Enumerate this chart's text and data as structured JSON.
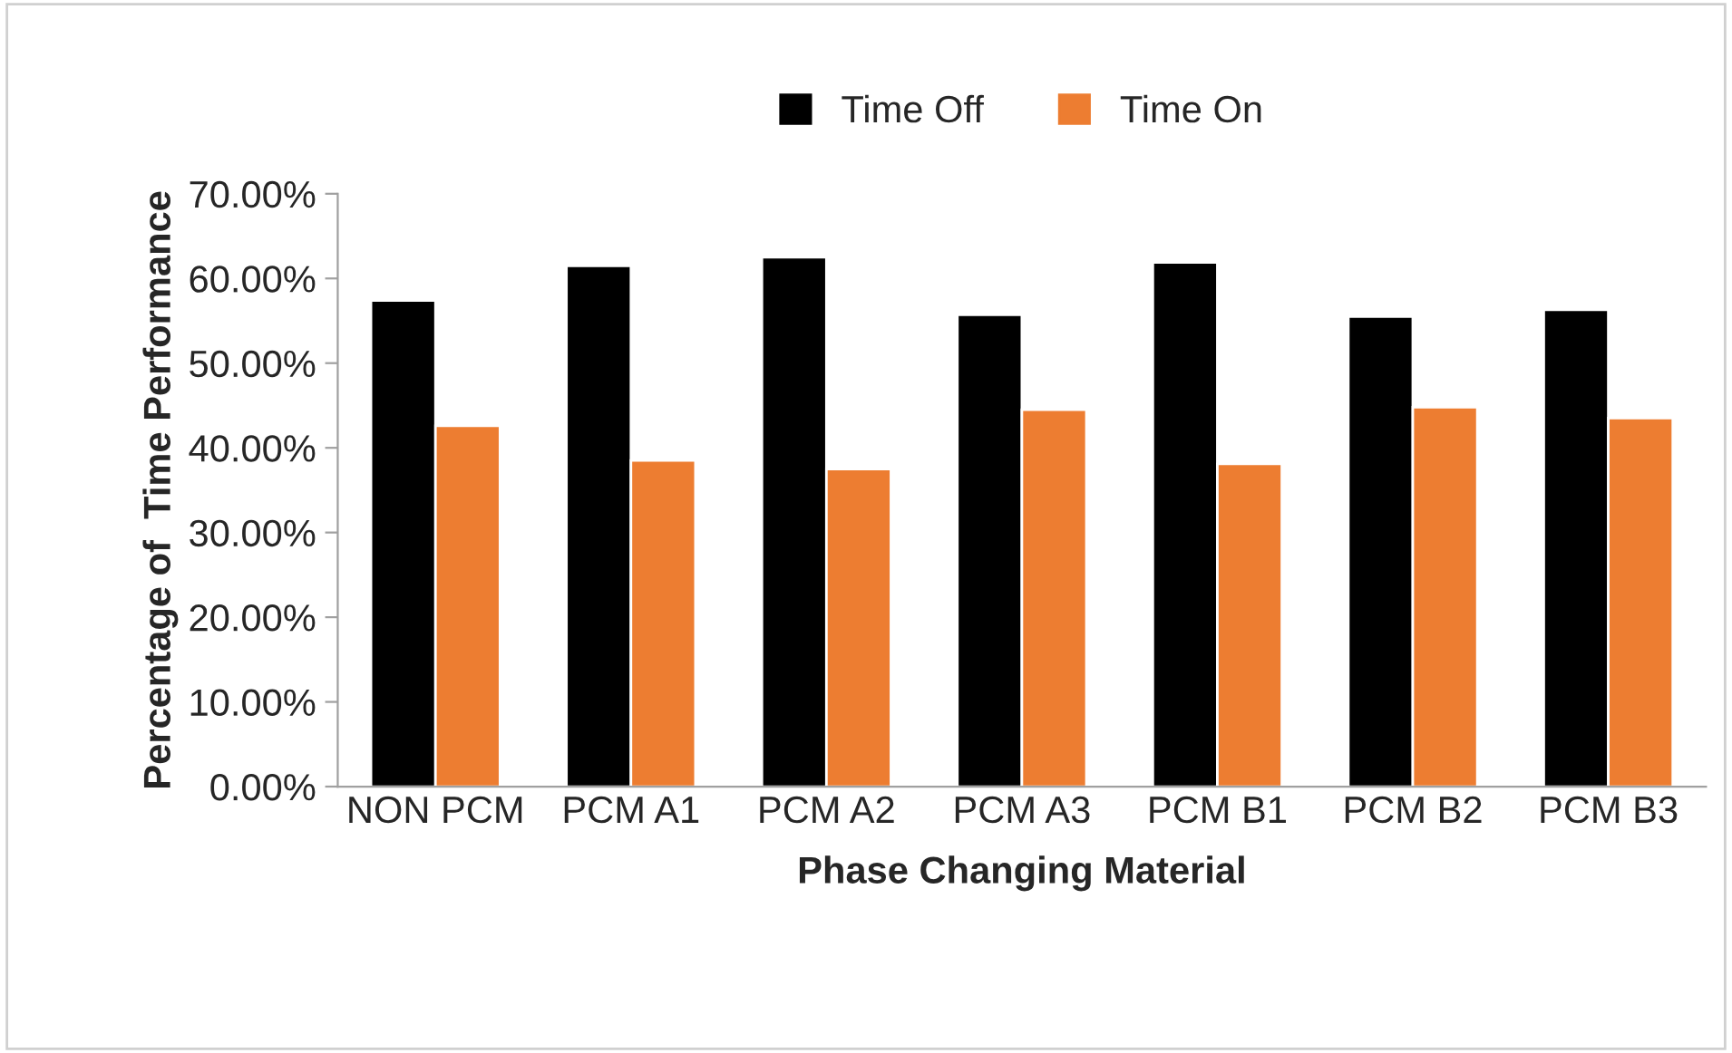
{
  "chart_data": {
    "type": "bar",
    "xlabel": "Phase Changing Material",
    "ylabel": "Percentage of  Time Performance",
    "categories": [
      "NON PCM",
      "PCM A1",
      "PCM A2",
      "PCM A3",
      "PCM B1",
      "PCM B2",
      "PCM B3"
    ],
    "series": [
      {
        "name": "Time Off",
        "color": "#000000",
        "values": [
          57.4,
          61.5,
          62.5,
          55.7,
          61.9,
          55.5,
          56.3
        ]
      },
      {
        "name": "Time On",
        "color": "#ed7d31",
        "values": [
          42.6,
          38.5,
          37.5,
          44.5,
          38.1,
          44.8,
          43.5
        ]
      }
    ],
    "ylim": [
      0,
      70
    ],
    "yticks": [
      {
        "value": 0,
        "label": "0.00%"
      },
      {
        "value": 10,
        "label": "10.00%"
      },
      {
        "value": 20,
        "label": "20.00%"
      },
      {
        "value": 30,
        "label": "30.00%"
      },
      {
        "value": 40,
        "label": "40.00%"
      },
      {
        "value": 50,
        "label": "50.00%"
      },
      {
        "value": 60,
        "label": "60.00%"
      },
      {
        "value": 70,
        "label": "70.00%"
      }
    ],
    "grid": false,
    "legend": "top"
  }
}
